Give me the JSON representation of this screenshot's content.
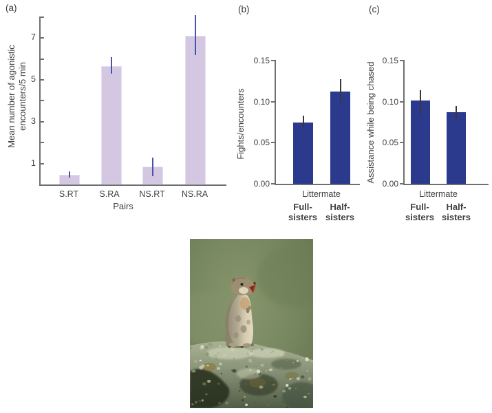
{
  "panel_labels": {
    "a": "(a)",
    "b": "(b)",
    "c": "(c)"
  },
  "chart_data": [
    {
      "id": "a",
      "type": "bar",
      "ylabel_lines": [
        "Mean number of agonistic",
        "encounters/5 min"
      ],
      "xlabel": "Pairs",
      "categories": [
        "S.RT",
        "S.RA",
        "NS.RT",
        "NS.RA"
      ],
      "values": [
        0.45,
        5.65,
        0.85,
        7.1
      ],
      "error_low": [
        0.33,
        5.3,
        0.4,
        6.2
      ],
      "error_high": [
        0.62,
        6.1,
        1.27,
        8.1
      ],
      "ylim": [
        0,
        8
      ],
      "yticks": [
        {
          "v": 1,
          "label": "1"
        },
        {
          "v": 2,
          "label": ""
        },
        {
          "v": 3,
          "label": "3"
        },
        {
          "v": 4,
          "label": ""
        },
        {
          "v": 5,
          "label": "5"
        },
        {
          "v": 6,
          "label": ""
        },
        {
          "v": 7,
          "label": "7"
        },
        {
          "v": 8,
          "label": ""
        }
      ],
      "bar_color": "#d3c7e2",
      "bar_border": "#e7e0f1",
      "error_color": "#4a54a5",
      "grid": false,
      "legend": "none"
    },
    {
      "id": "b",
      "type": "bar",
      "ylabel": "Fights/encounters",
      "group_label": "Littermate",
      "categories": [
        [
          "Full-",
          "sisters"
        ],
        [
          "Half-",
          "sisters"
        ]
      ],
      "values": [
        0.075,
        0.112
      ],
      "error_low": [
        0.066,
        0.097
      ],
      "error_high": [
        0.083,
        0.127
      ],
      "ylim": [
        0,
        0.15
      ],
      "yticks": [
        {
          "v": 0,
          "label": "0.00"
        },
        {
          "v": 0.05,
          "label": "0.05"
        },
        {
          "v": 0.1,
          "label": "0.10"
        },
        {
          "v": 0.15,
          "label": "0.15"
        }
      ],
      "bar_color": "#2c3a8e",
      "error_color": "#38383a",
      "grid": false,
      "legend": "none"
    },
    {
      "id": "c",
      "type": "bar",
      "ylabel": "Assistance while being chased",
      "group_label": "Littermate",
      "categories": [
        [
          "Full-",
          "sisters"
        ],
        [
          "Half-",
          "sisters"
        ]
      ],
      "values": [
        0.101,
        0.087
      ],
      "error_low": [
        0.085,
        0.079
      ],
      "error_high": [
        0.114,
        0.095
      ],
      "ylim": [
        0,
        0.15
      ],
      "yticks": [
        {
          "v": 0,
          "label": "0.00"
        },
        {
          "v": 0.05,
          "label": "0.05"
        },
        {
          "v": 0.1,
          "label": "0.10"
        },
        {
          "v": 0.15,
          "label": "0.15"
        }
      ],
      "bar_color": "#2c3a8e",
      "error_color": "#38383a",
      "grid": false,
      "legend": "none"
    }
  ],
  "photo": {
    "description": "Ground squirrel standing upright on a lichen-covered rock, calling with mouth open, against a blurred green meadow background",
    "colors": {
      "background_green": "#7a8a5f",
      "rock_light": "#aab293",
      "rock_dark": "#262d1c",
      "lichen_white": "#e4e7d2",
      "squirrel_back": "#8e8670",
      "squirrel_belly": "#e0d7bf",
      "mouth_red": "#a83a26"
    }
  }
}
